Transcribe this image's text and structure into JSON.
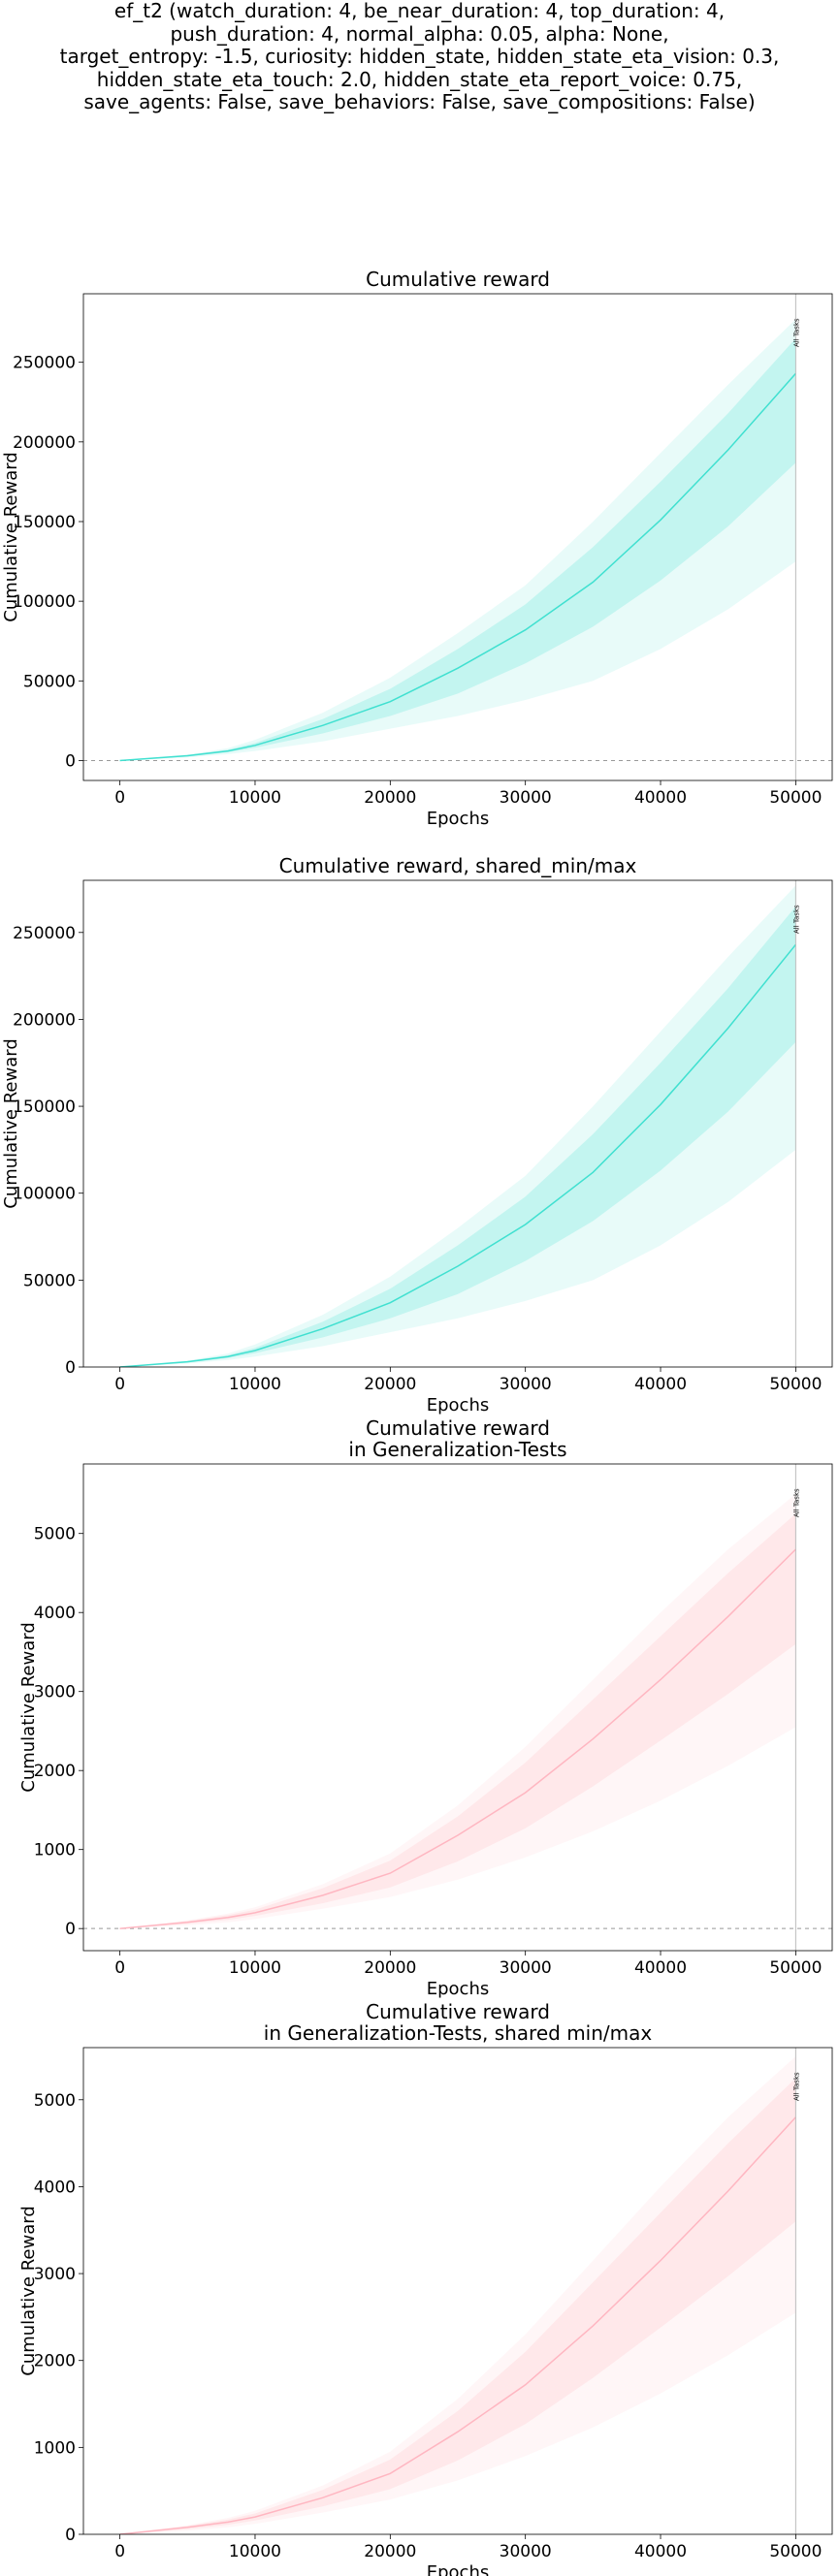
{
  "figure_title_lines": [
    "ef_t2 (watch_duration: 4, be_near_duration: 4, top_duration: 4,",
    "push_duration: 4, normal_alpha: 0.05, alpha: None,",
    "target_entropy: -1.5, curiosity: hidden_state, hidden_state_eta_vision: 0.3,",
    "hidden_state_eta_touch: 2.0, hidden_state_eta_report_voice: 0.75,",
    "save_agents: False, save_behaviors: False, save_compositions: False)"
  ],
  "colors": {
    "cumulative": "#40E0D0",
    "generalization": "#FFB6C1",
    "zero_line": "#999999",
    "marker_line": "#bbbbbb"
  },
  "chart_data": [
    {
      "type": "line",
      "title_lines": [
        "Cumulative reward"
      ],
      "xlabel": "Epochs",
      "ylabel": "Cumulative Reward",
      "xlim": [
        -2700,
        52700
      ],
      "ylim": [
        -12500,
        293000
      ],
      "xticks": [
        0,
        10000,
        20000,
        30000,
        40000,
        50000
      ],
      "yticks": [
        0,
        50000,
        100000,
        150000,
        200000,
        250000
      ],
      "zero_line": true,
      "grid": false,
      "series_color": "#40E0D0",
      "marker": {
        "x": 50000,
        "label": "All Tasks"
      },
      "series": [
        {
          "x": [
            0,
            5000,
            8000,
            10000,
            15000,
            20000,
            25000,
            30000,
            35000,
            40000,
            45000,
            50000
          ],
          "mean": [
            0,
            3000,
            6000,
            9500,
            22000,
            37000,
            58000,
            82000,
            112000,
            151000,
            195000,
            243000
          ],
          "q_low": [
            0,
            2500,
            5200,
            8000,
            17000,
            28000,
            42000,
            61000,
            84000,
            113000,
            147000,
            187000
          ],
          "q_high": [
            0,
            3400,
            6800,
            11000,
            26000,
            45000,
            70000,
            98000,
            134000,
            175000,
            218000,
            265000
          ],
          "min": [
            0,
            2000,
            4000,
            6000,
            12000,
            20000,
            28000,
            38000,
            50000,
            70000,
            95000,
            125000
          ],
          "max": [
            0,
            3800,
            7800,
            13000,
            30000,
            52000,
            80000,
            110000,
            150000,
            193000,
            236000,
            277000
          ]
        }
      ]
    },
    {
      "type": "line",
      "title_lines": [
        "Cumulative reward, shared_min/max"
      ],
      "xlabel": "Epochs",
      "ylabel": "Cumulative Reward",
      "xlim": [
        -2700,
        52700
      ],
      "ylim": [
        0,
        280000
      ],
      "xticks": [
        0,
        10000,
        20000,
        30000,
        40000,
        50000
      ],
      "yticks": [
        0,
        50000,
        100000,
        150000,
        200000,
        250000
      ],
      "zero_line": false,
      "grid": false,
      "series_color": "#40E0D0",
      "marker": {
        "x": 50000,
        "label": "All Tasks"
      },
      "series": [
        {
          "x": [
            0,
            5000,
            8000,
            10000,
            15000,
            20000,
            25000,
            30000,
            35000,
            40000,
            45000,
            50000
          ],
          "mean": [
            0,
            3000,
            6000,
            9500,
            22000,
            37000,
            58000,
            82000,
            112000,
            151000,
            195000,
            243000
          ],
          "q_low": [
            0,
            2500,
            5200,
            8000,
            17000,
            28000,
            42000,
            61000,
            84000,
            113000,
            147000,
            187000
          ],
          "q_high": [
            0,
            3400,
            6800,
            11000,
            26000,
            45000,
            70000,
            98000,
            134000,
            175000,
            218000,
            265000
          ],
          "min": [
            0,
            2000,
            4000,
            6000,
            12000,
            20000,
            28000,
            38000,
            50000,
            70000,
            95000,
            125000
          ],
          "max": [
            0,
            3800,
            7800,
            13000,
            30000,
            52000,
            80000,
            110000,
            150000,
            193000,
            236000,
            277000
          ]
        }
      ]
    },
    {
      "type": "line",
      "title_lines": [
        "Cumulative reward",
        "in Generalization-Tests"
      ],
      "xlabel": "Epochs",
      "ylabel": "Cumulative Reward",
      "xlim": [
        -2700,
        52700
      ],
      "ylim": [
        -280,
        5880
      ],
      "xticks": [
        0,
        10000,
        20000,
        30000,
        40000,
        50000
      ],
      "yticks": [
        0,
        1000,
        2000,
        3000,
        4000,
        5000
      ],
      "zero_line": true,
      "grid": false,
      "series_color": "#FFB6C1",
      "marker": {
        "x": 50000,
        "label": "All Tasks"
      },
      "series": [
        {
          "x": [
            0,
            5000,
            8000,
            10000,
            15000,
            20000,
            25000,
            30000,
            35000,
            40000,
            45000,
            50000
          ],
          "mean": [
            0,
            80,
            140,
            200,
            420,
            700,
            1180,
            1720,
            2400,
            3150,
            3950,
            4800
          ],
          "q_low": [
            0,
            60,
            110,
            160,
            320,
            520,
            850,
            1270,
            1800,
            2380,
            2970,
            3600
          ],
          "q_high": [
            0,
            95,
            170,
            240,
            510,
            860,
            1420,
            2100,
            2900,
            3700,
            4500,
            5250
          ],
          "min": [
            0,
            40,
            80,
            120,
            250,
            400,
            620,
            900,
            1230,
            1620,
            2060,
            2550
          ],
          "max": [
            0,
            105,
            190,
            270,
            560,
            950,
            1560,
            2300,
            3150,
            4000,
            4800,
            5500
          ]
        }
      ]
    },
    {
      "type": "line",
      "title_lines": [
        "Cumulative reward",
        "in Generalization-Tests, shared min/max"
      ],
      "xlabel": "Epochs",
      "ylabel": "Cumulative Reward",
      "xlim": [
        -2700,
        52700
      ],
      "ylim": [
        0,
        5600
      ],
      "xticks": [
        0,
        10000,
        20000,
        30000,
        40000,
        50000
      ],
      "yticks": [
        0,
        1000,
        2000,
        3000,
        4000,
        5000
      ],
      "zero_line": false,
      "grid": false,
      "series_color": "#FFB6C1",
      "marker": {
        "x": 50000,
        "label": "All Tasks"
      },
      "series": [
        {
          "x": [
            0,
            5000,
            8000,
            10000,
            15000,
            20000,
            25000,
            30000,
            35000,
            40000,
            45000,
            50000
          ],
          "mean": [
            0,
            80,
            140,
            200,
            420,
            700,
            1180,
            1720,
            2400,
            3150,
            3950,
            4800
          ],
          "q_low": [
            0,
            60,
            110,
            160,
            320,
            520,
            850,
            1270,
            1800,
            2380,
            2970,
            3600
          ],
          "q_high": [
            0,
            95,
            170,
            240,
            510,
            860,
            1420,
            2100,
            2900,
            3700,
            4500,
            5250
          ],
          "min": [
            0,
            40,
            80,
            120,
            250,
            400,
            620,
            900,
            1230,
            1620,
            2060,
            2550
          ],
          "max": [
            0,
            105,
            190,
            270,
            560,
            950,
            1560,
            2300,
            3150,
            4000,
            4800,
            5500
          ]
        }
      ]
    }
  ]
}
